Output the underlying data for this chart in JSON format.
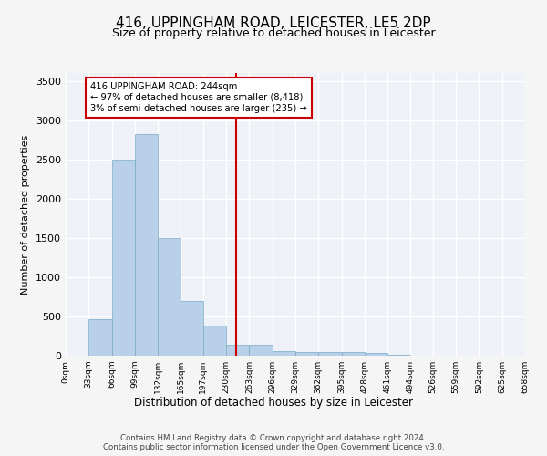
{
  "title": "416, UPPINGHAM ROAD, LEICESTER, LE5 2DP",
  "subtitle": "Size of property relative to detached houses in Leicester",
  "xlabel": "Distribution of detached houses by size in Leicester",
  "ylabel": "Number of detached properties",
  "bar_color": "#b8d0e8",
  "bar_edge_color": "#7aaac8",
  "background_color": "#eef2f8",
  "grid_color": "#ffffff",
  "bin_edges": [
    0,
    33,
    66,
    99,
    132,
    165,
    197,
    230,
    263,
    296,
    329,
    362,
    395,
    428,
    461,
    494,
    526,
    559,
    592,
    625,
    658
  ],
  "bar_heights": [
    5,
    470,
    2500,
    2820,
    1500,
    700,
    385,
    140,
    140,
    60,
    50,
    50,
    50,
    30,
    10,
    5,
    5,
    5,
    2,
    2
  ],
  "property_size": 244,
  "annotation_title": "416 UPPINGHAM ROAD: 244sqm",
  "annotation_line1": "← 97% of detached houses are smaller (8,418)",
  "annotation_line2": "3% of semi-detached houses are larger (235) →",
  "annotation_color": "#cc0000",
  "vline_color": "#cc0000",
  "ylim": [
    0,
    3600
  ],
  "yticks": [
    0,
    500,
    1000,
    1500,
    2000,
    2500,
    3000,
    3500
  ],
  "tick_labels": [
    "0sqm",
    "33sqm",
    "66sqm",
    "99sqm",
    "132sqm",
    "165sqm",
    "197sqm",
    "230sqm",
    "263sqm",
    "296sqm",
    "329sqm",
    "362sqm",
    "395sqm",
    "428sqm",
    "461sqm",
    "494sqm",
    "526sqm",
    "559sqm",
    "592sqm",
    "625sqm",
    "658sqm"
  ],
  "footer_line1": "Contains HM Land Registry data © Crown copyright and database right 2024.",
  "footer_line2": "Contains public sector information licensed under the Open Government Licence v3.0."
}
